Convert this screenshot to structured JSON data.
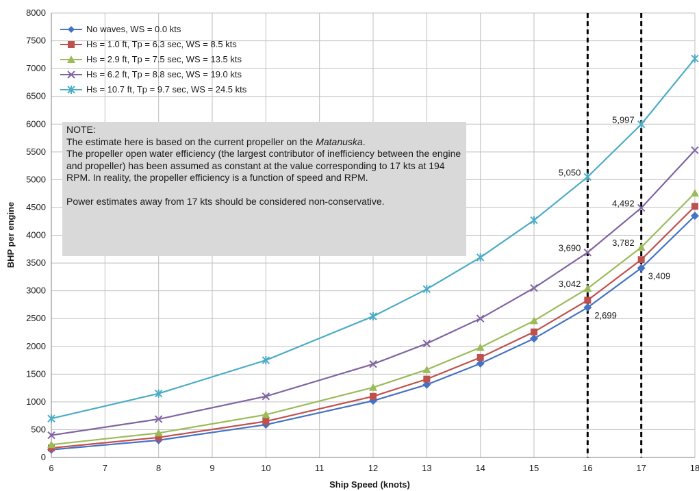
{
  "chart_data": {
    "type": "line",
    "title": "",
    "xlabel": "Ship Speed (knots)",
    "ylabel": "BHP per engine",
    "xlim": [
      6,
      18
    ],
    "ylim": [
      0,
      8000
    ],
    "x_ticks": [
      6,
      7,
      8,
      9,
      10,
      11,
      12,
      13,
      14,
      15,
      16,
      17,
      18
    ],
    "y_ticks": [
      0,
      500,
      1000,
      1500,
      2000,
      2500,
      3000,
      3500,
      4000,
      4500,
      5000,
      5500,
      6000,
      6500,
      7000,
      7500,
      8000
    ],
    "grid": true,
    "legend_position": "top-left",
    "x": [
      6,
      8,
      10,
      12,
      13,
      14,
      15,
      16,
      17,
      18
    ],
    "series": [
      {
        "name": "No waves, WS = 0.0 kts",
        "color": "#4472c4",
        "marker": "diamond",
        "values": [
          140,
          310,
          590,
          1020,
          1310,
          1690,
          2140,
          2699,
          3409,
          4350
        ]
      },
      {
        "name": "Hs = 1.0 ft, Tp = 6.3 sec, WS = 8.5 kts",
        "color": "#c0504d",
        "marker": "square",
        "values": [
          170,
          360,
          650,
          1100,
          1410,
          1800,
          2260,
          2830,
          3560,
          4520
        ]
      },
      {
        "name": "Hs = 2.9 ft, Tp = 7.5 sec, WS = 13.5 kts",
        "color": "#9bbb59",
        "marker": "triangle",
        "values": [
          230,
          440,
          770,
          1260,
          1580,
          1980,
          2460,
          3042,
          3782,
          4760
        ]
      },
      {
        "name": "Hs = 6.2 ft, Tp = 8.8 sec, WS = 19.0 kts",
        "color": "#8064a2",
        "marker": "x",
        "values": [
          400,
          690,
          1100,
          1680,
          2050,
          2500,
          3050,
          3690,
          4492,
          5530
        ]
      },
      {
        "name": "Hs = 10.7 ft, Tp = 9.7 sec, WS = 24.5 kts",
        "color": "#4bacc6",
        "marker": "star",
        "values": [
          700,
          1150,
          1750,
          2540,
          3030,
          3600,
          4270,
          5050,
          5997,
          7180
        ]
      }
    ],
    "vertical_lines": [
      16,
      17
    ],
    "data_labels": [
      {
        "x": 16,
        "y": 2699,
        "text": "2,699",
        "side": "right"
      },
      {
        "x": 17,
        "y": 3409,
        "text": "3,409",
        "side": "right"
      },
      {
        "x": 16,
        "y": 3042,
        "text": "3,042",
        "side": "left"
      },
      {
        "x": 17,
        "y": 3782,
        "text": "3,782",
        "side": "left"
      },
      {
        "x": 16,
        "y": 3690,
        "text": "3,690",
        "side": "left"
      },
      {
        "x": 17,
        "y": 4492,
        "text": "4,492",
        "side": "left"
      },
      {
        "x": 16,
        "y": 5050,
        "text": "5,050",
        "side": "left"
      },
      {
        "x": 17,
        "y": 5997,
        "text": "5,997",
        "side": "left"
      }
    ]
  },
  "note": {
    "heading": "NOTE:",
    "line1_prefix": "The estimate here is based on the current propeller on the ",
    "line1_italic": "Matanuska",
    "line1_suffix": ".",
    "body": "The propeller open water efficiency (the largest contributor of inefficiency between the engine and propeller) has been assumed as constant at the value corresponding to 17 kts at 194 RPM. In reality, the propeller efficiency is a function of speed and RPM.",
    "footer": "Power estimates away from 17 kts should be considered non-conservative."
  }
}
